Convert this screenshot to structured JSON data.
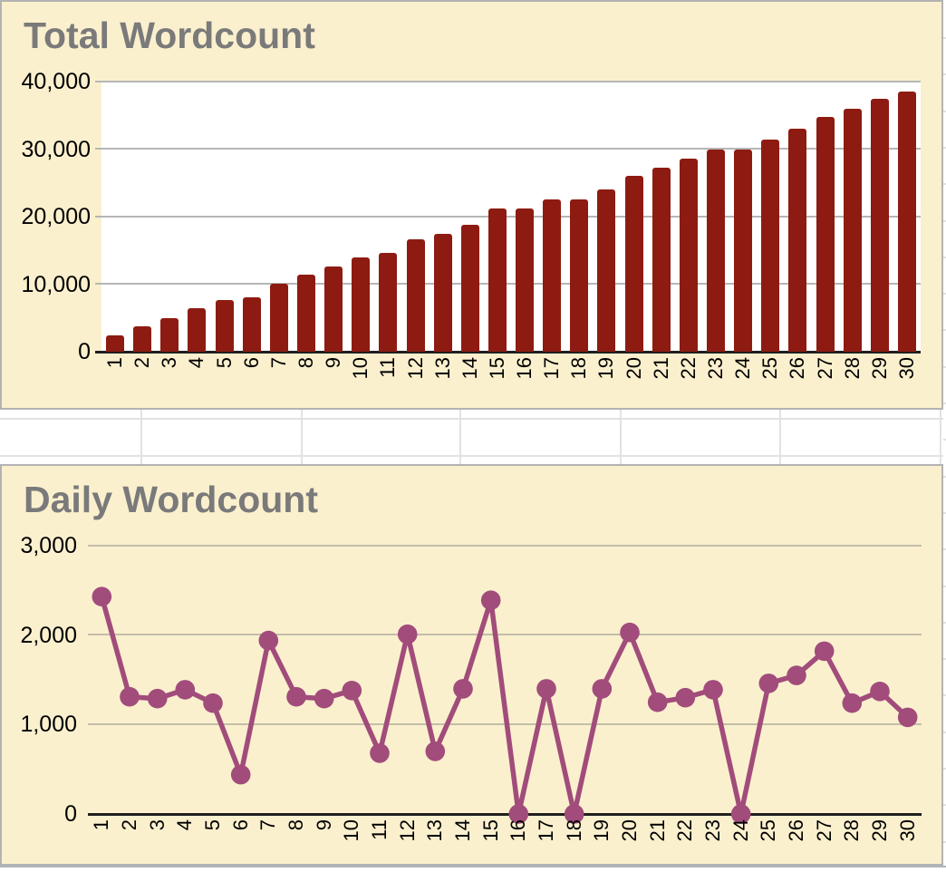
{
  "sheet": {
    "description_labels": [],
    "gridline_color": "#E2E2E2"
  },
  "colors": {
    "chart_background": "#FBF0CE",
    "chart_border": "#B3B3B3",
    "plot_background": "#FFFFFF",
    "gridline": "#B6B6B6",
    "gridline_on_cream": "#C2BEA9",
    "axis_line": "#1F1F1F",
    "title_text": "#7A7A7A",
    "axis_text": "#000000",
    "bar": "#8E1B11",
    "line": "#A14C7B"
  },
  "chart_data": [
    {
      "type": "bar",
      "title": "Total Wordcount",
      "xlabel": "",
      "ylabel": "",
      "ylim": [
        0,
        40000
      ],
      "grid": true,
      "legend": "none",
      "bar_color": "#8E1B11",
      "y_ticks": [
        {
          "value": 0,
          "label": "0"
        },
        {
          "value": 10000,
          "label": "10,000"
        },
        {
          "value": 20000,
          "label": "20,000"
        },
        {
          "value": 30000,
          "label": "30,000"
        },
        {
          "value": 40000,
          "label": "40,000"
        }
      ],
      "categories": [
        "1",
        "2",
        "3",
        "4",
        "5",
        "6",
        "7",
        "8",
        "9",
        "10",
        "11",
        "12",
        "13",
        "14",
        "15",
        "16",
        "17",
        "18",
        "19",
        "20",
        "21",
        "22",
        "23",
        "24",
        "25",
        "26",
        "27",
        "28",
        "29",
        "30"
      ],
      "values": [
        2430,
        3740,
        5030,
        6420,
        7660,
        8100,
        10040,
        11350,
        12640,
        14020,
        14700,
        16710,
        17410,
        18810,
        21200,
        21200,
        22600,
        22600,
        24000,
        26030,
        27280,
        28580,
        29970,
        29970,
        31430,
        32980,
        34800,
        36040,
        37410,
        38490
      ]
    },
    {
      "type": "line",
      "title": "Daily Wordcount",
      "xlabel": "",
      "ylabel": "",
      "ylim": [
        0,
        3000
      ],
      "grid": true,
      "legend": "none",
      "line_color": "#A14C7B",
      "marker": "circle",
      "y_ticks": [
        {
          "value": 0,
          "label": "0"
        },
        {
          "value": 1000,
          "label": "1,000"
        },
        {
          "value": 2000,
          "label": "2,000"
        },
        {
          "value": 3000,
          "label": "3,000"
        }
      ],
      "categories": [
        "1",
        "2",
        "3",
        "4",
        "5",
        "6",
        "7",
        "8",
        "9",
        "10",
        "11",
        "12",
        "13",
        "14",
        "15",
        "16",
        "17",
        "18",
        "19",
        "20",
        "21",
        "22",
        "23",
        "24",
        "25",
        "26",
        "27",
        "28",
        "29",
        "30"
      ],
      "values": [
        2430,
        1310,
        1290,
        1390,
        1240,
        440,
        1940,
        1310,
        1290,
        1380,
        680,
        2010,
        700,
        1400,
        2390,
        0,
        1400,
        0,
        1400,
        2030,
        1250,
        1300,
        1390,
        0,
        1460,
        1550,
        1820,
        1240,
        1370,
        1080
      ]
    }
  ]
}
